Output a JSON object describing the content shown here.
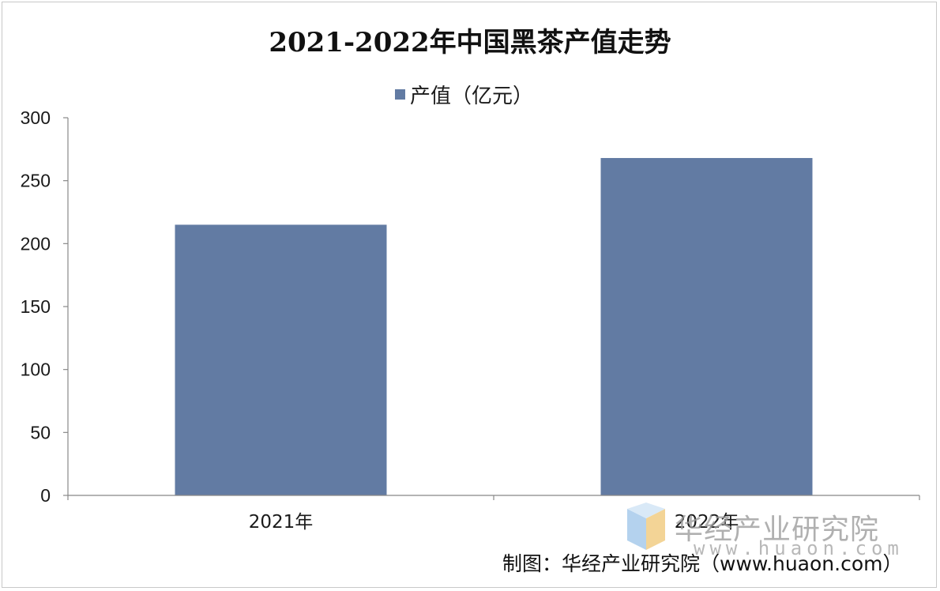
{
  "colors": {
    "bar": "#627ba3",
    "axis": "#888888",
    "text": "#1a1a1a"
  },
  "chart_data": {
    "type": "bar",
    "title": "2021-2022年中国黑茶产值走势",
    "categories": [
      "2021年",
      "2022年"
    ],
    "series": [
      {
        "name": "产值（亿元）",
        "values": [
          215,
          268
        ]
      }
    ],
    "xlabel": "",
    "ylabel": "",
    "ylim": [
      0,
      300
    ],
    "yticks": [
      "0",
      "50",
      "100",
      "150",
      "200",
      "250",
      "300"
    ],
    "grid": false,
    "legend_position": "top-center"
  },
  "watermark": {
    "text": "华经产业研究院",
    "url": "www.huaon.com"
  },
  "credit": "制图：华经产业研究院（www.huaon.com）"
}
